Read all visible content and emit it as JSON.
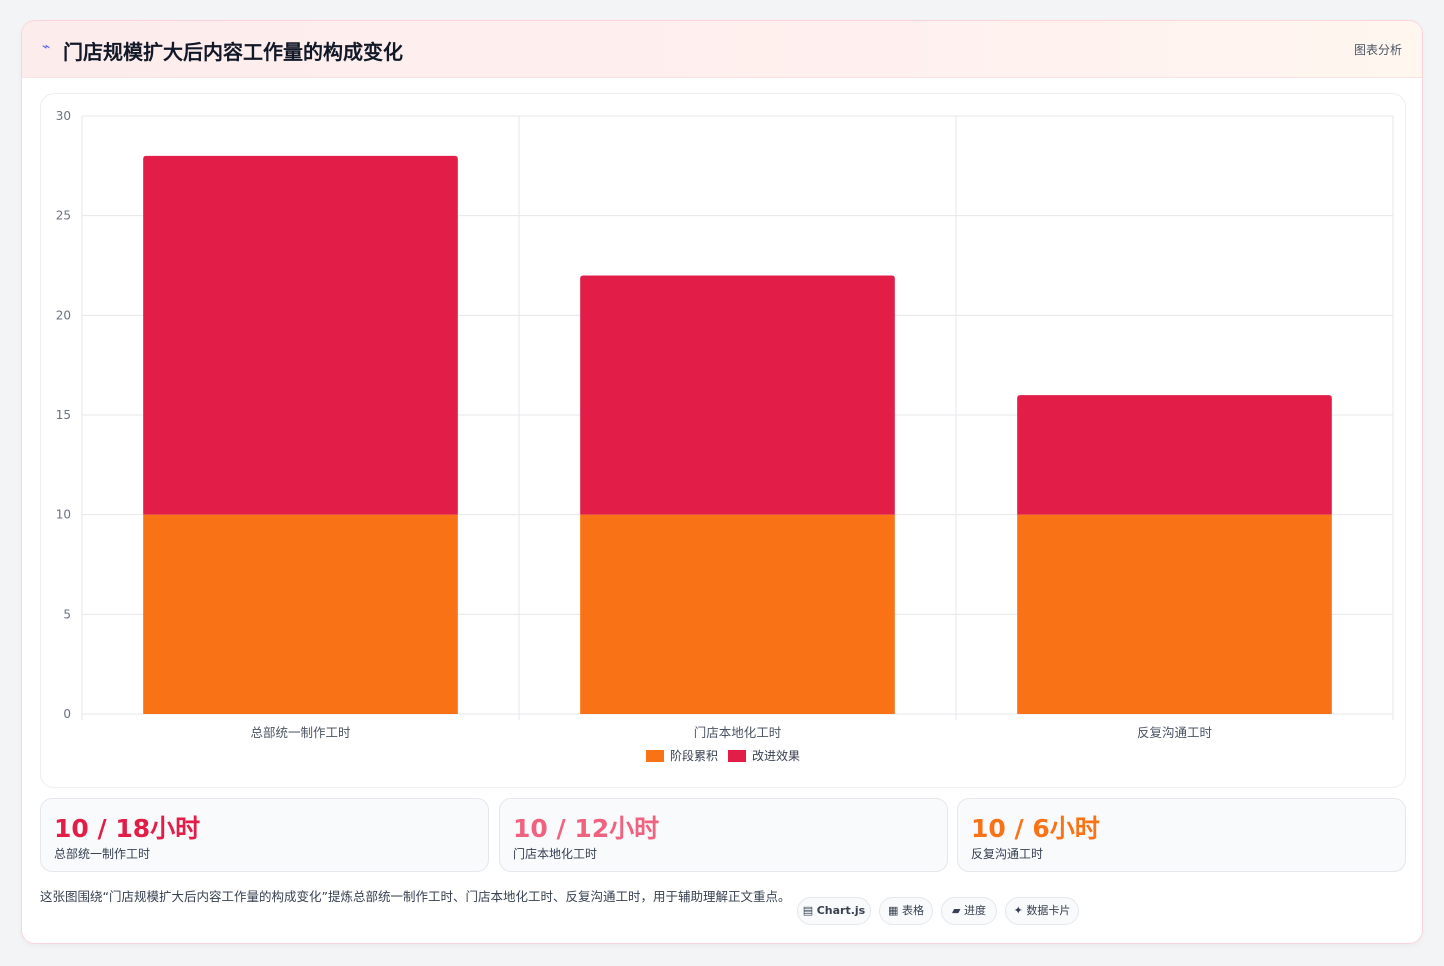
{
  "header": {
    "icon": "chart-spark-icon",
    "title": "门店规模扩大后内容工作量的构成变化",
    "tag": "图表分析"
  },
  "chart_data": {
    "type": "bar",
    "stacked": true,
    "categories": [
      "总部统一制作工时",
      "门店本地化工时",
      "反复沟通工时"
    ],
    "series": [
      {
        "name": "阶段累积",
        "values": [
          10,
          10,
          10
        ],
        "color": "#f97316"
      },
      {
        "name": "改进效果",
        "values": [
          18,
          12,
          6
        ],
        "color": "#e11d48"
      }
    ],
    "ylim": [
      0,
      30
    ],
    "yticks": [
      0,
      5,
      10,
      15,
      20,
      25,
      30
    ],
    "grid": true,
    "legend": "bottom"
  },
  "stats": [
    {
      "value": "10 / 18小时",
      "label": "总部统一制作工时",
      "color": "#e11d48"
    },
    {
      "value": "10 / 12小时",
      "label": "门店本地化工时",
      "color": "#f0627f"
    },
    {
      "value": "10 / 6小时",
      "label": "反复沟通工时",
      "color": "#f97316"
    }
  ],
  "footer": {
    "text": "这张图围绕“门店规模扩大后内容工作量的构成变化”提炼总部统一制作工时、门店本地化工时、反复沟通工时，用于辅助理解正文重点。"
  },
  "pills": [
    {
      "icon": "chart-icon",
      "glyph": "▤",
      "label": "Chart.js"
    },
    {
      "icon": "table-icon",
      "glyph": "▦",
      "label": "表格"
    },
    {
      "icon": "progress-icon",
      "glyph": "▰",
      "label": "进度"
    },
    {
      "icon": "card-icon",
      "glyph": "✦",
      "label": "数据卡片"
    }
  ]
}
